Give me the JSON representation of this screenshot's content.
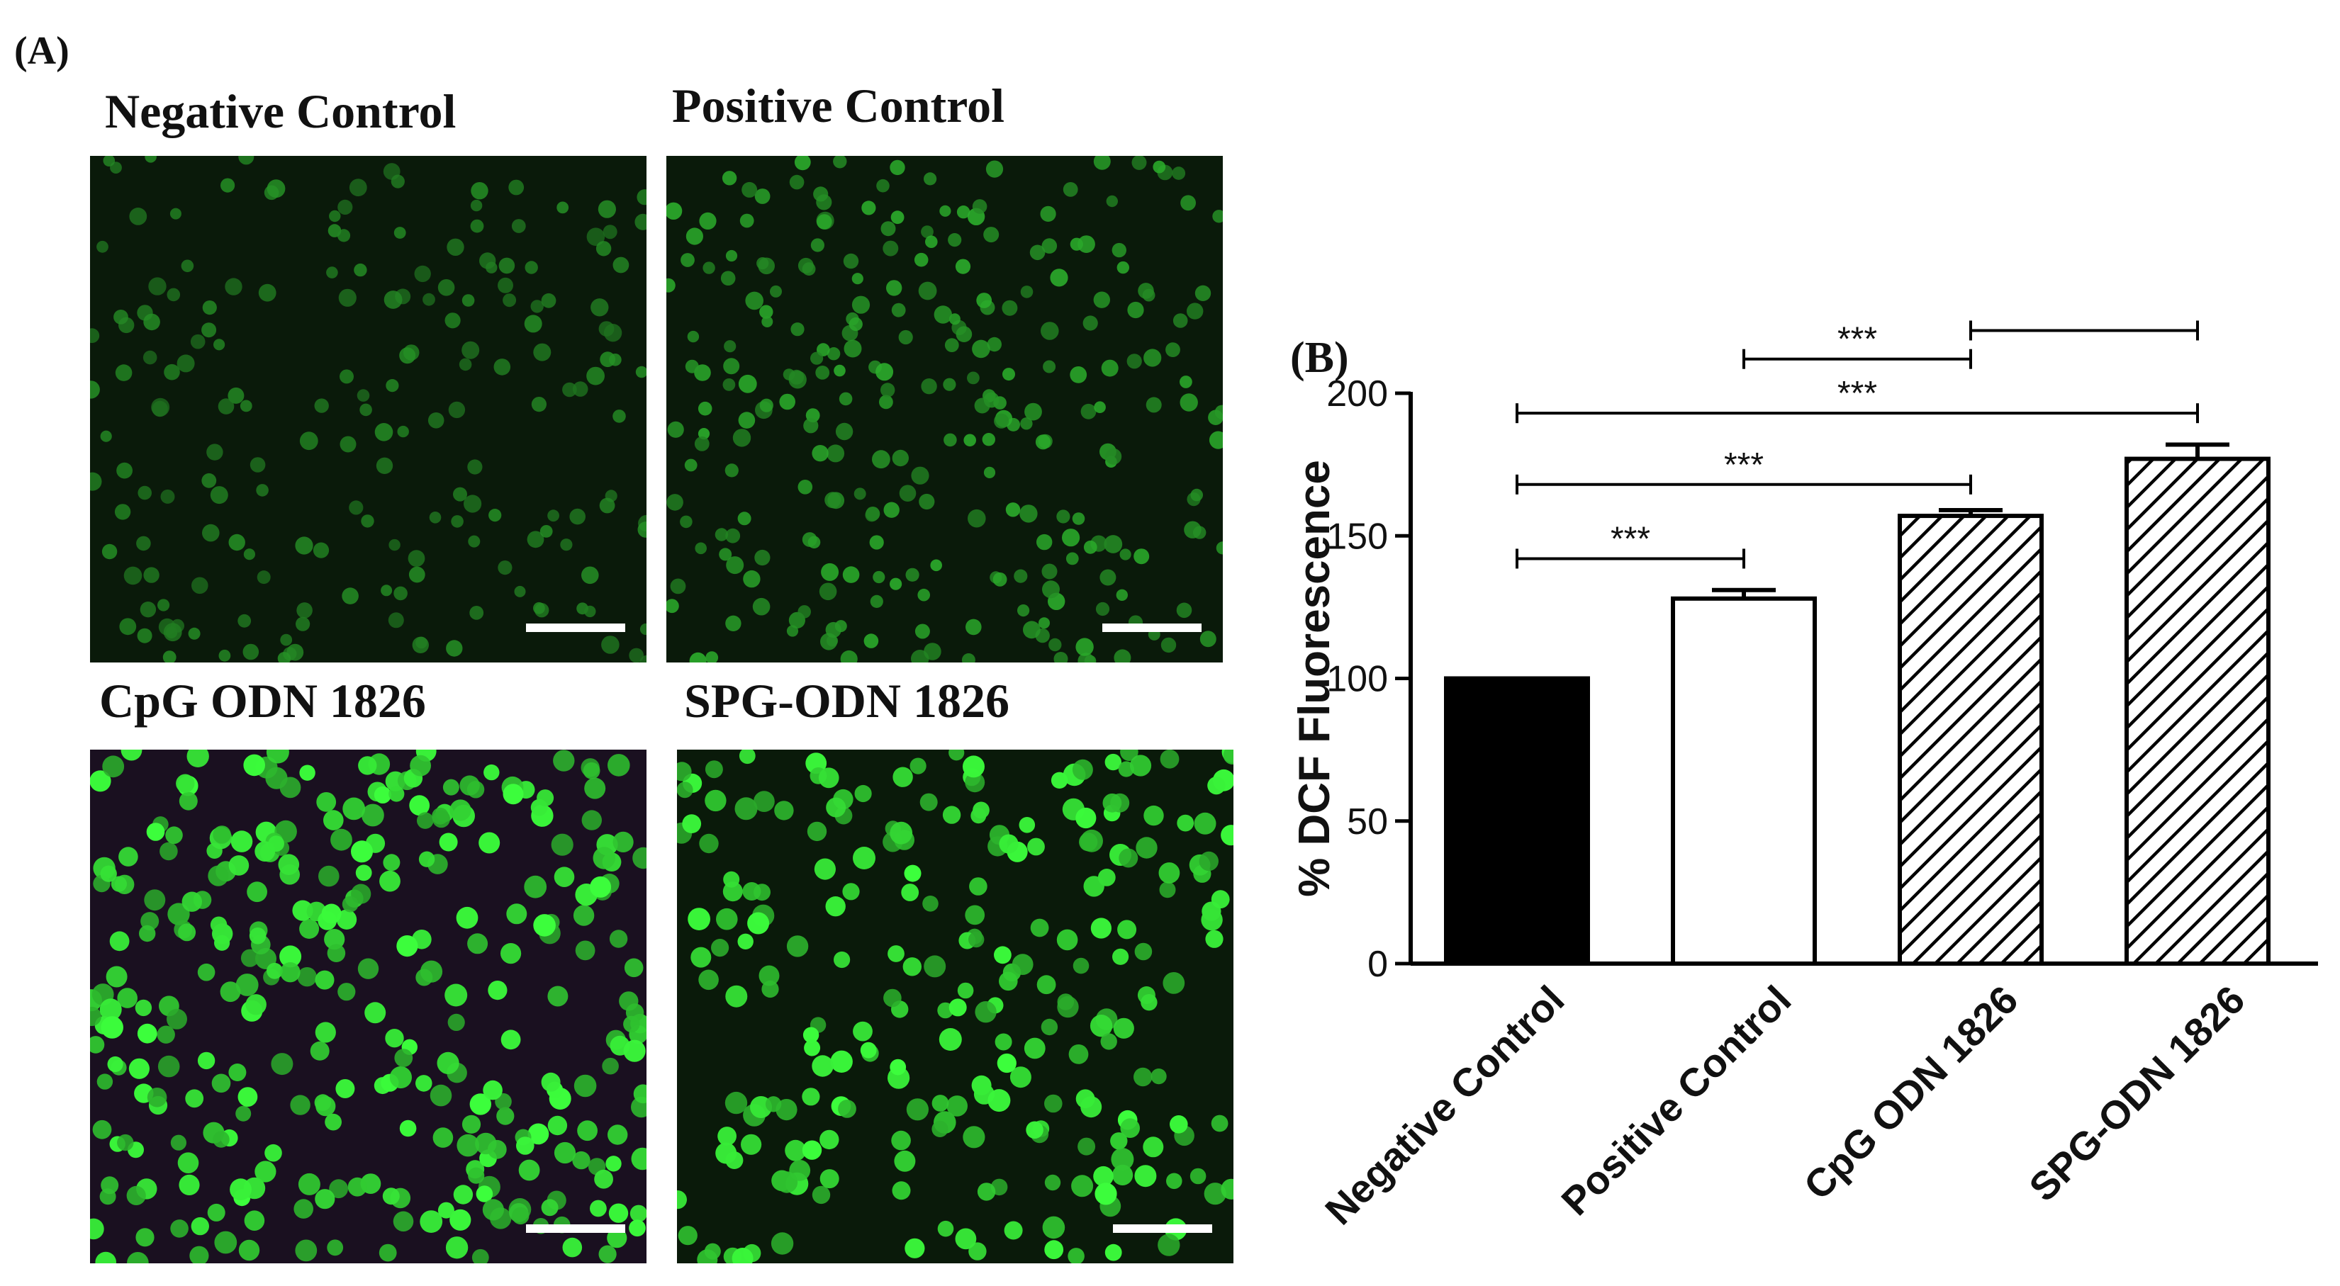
{
  "panel_a_label": "(A)",
  "panel_b_label": "(B)",
  "micrographs": [
    {
      "title": "Negative Control",
      "density": 0.25,
      "brightness": 0.45
    },
    {
      "title": "Positive Control",
      "density": 0.55,
      "brightness": 0.6
    },
    {
      "title": "CpG ODN 1826",
      "density": 0.75,
      "brightness": 1.0
    },
    {
      "title": "SPG-ODN 1826",
      "density": 0.45,
      "brightness": 1.0
    }
  ],
  "colors": {
    "cell_green": "#33ff33",
    "background_dark": "#0a1a0a",
    "background_purple": "#1a1020",
    "scale_bar": "#ffffff",
    "bar_black": "#000000",
    "bar_white": "#ffffff"
  },
  "chart_data": {
    "type": "bar",
    "categories": [
      "Negative Control",
      "Positive Control",
      "CpG ODN 1826",
      "SPG-ODN 1826"
    ],
    "values": [
      100,
      128,
      157,
      177
    ],
    "errors": [
      0,
      3,
      2,
      5
    ],
    "fills": [
      "solid-black",
      "white",
      "hatched",
      "hatched"
    ],
    "ylabel": "% DCF Fluorescence",
    "ylim": [
      0,
      200
    ],
    "yticks": [
      0,
      50,
      100,
      150,
      200
    ],
    "grid": false,
    "significance": [
      {
        "from": 0,
        "to": 1,
        "label": "***"
      },
      {
        "from": 0,
        "to": 2,
        "label": "***"
      },
      {
        "from": 0,
        "to": 3,
        "label": "***"
      },
      {
        "from": 1,
        "to": 2,
        "label": "***"
      },
      {
        "from": 2,
        "to": 3,
        "label": "**"
      },
      {
        "from": 1,
        "to": 3,
        "label": "***"
      }
    ]
  }
}
